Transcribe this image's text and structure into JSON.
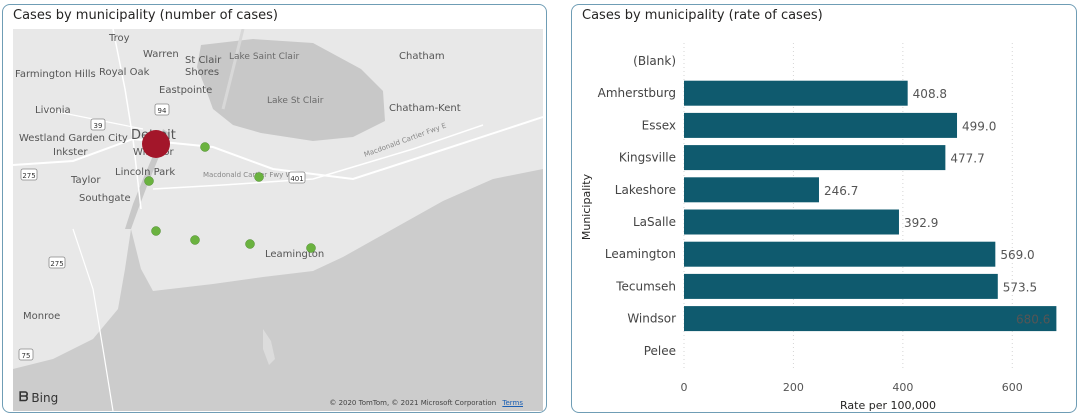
{
  "map_panel": {
    "title": "Cases by municipality (number of cases)",
    "bing_label": "Bing",
    "copyright": "© 2020 TomTom, © 2021 Microsoft Corporation",
    "terms_label": "Terms",
    "places": {
      "troy": "Troy",
      "warren": "Warren",
      "st_clair": "St Clair",
      "shores": "Shores",
      "lake_saint_clair": "Lake Saint Clair",
      "chatham": "Chatham",
      "farmington_hills": "Farmington Hills",
      "royal_oak": "Royal Oak",
      "eastpointe": "Eastpointe",
      "lake_st_clair": "Lake St Clair",
      "livonia": "Livonia",
      "chatham_kent": "Chatham-Kent",
      "westland_garden_city": "Westland Garden City",
      "detroit": "Detroit",
      "windsor": "Windsor",
      "inkster": "Inkster",
      "taylor": "Taylor",
      "lincoln_park": "Lincoln Park",
      "southgate": "Southgate",
      "leamington": "Leamington",
      "monroe": "Monroe",
      "macdonald_cartier_fwy": "Macdonald Cartier Fwy W",
      "macdonald_cartier_fwy_e": "Macdonald Cartier Fwy E"
    },
    "road_shields": [
      "94",
      "39",
      "275",
      "401",
      "275",
      "75"
    ],
    "colors": {
      "large_marker": "#a3162a",
      "small_marker": "#6ab23f"
    }
  },
  "bar_panel": {
    "title": "Cases by municipality (rate of cases)"
  },
  "chart_data": {
    "type": "bar",
    "orientation": "horizontal",
    "categories": [
      "(Blank)",
      "Amherstburg",
      "Essex",
      "Kingsville",
      "Lakeshore",
      "LaSalle",
      "Leamington",
      "Tecumseh",
      "Windsor",
      "Pelee"
    ],
    "values": [
      null,
      408.8,
      499.0,
      477.7,
      246.7,
      392.9,
      569.0,
      573.5,
      680.6,
      null
    ],
    "value_labels": [
      "",
      "408.8",
      "499.0",
      "477.7",
      "246.7",
      "392.9",
      "569.0",
      "573.5",
      "680.6",
      ""
    ],
    "xlabel": "Rate per 100,000",
    "ylabel": "Municipality",
    "xlim": [
      0,
      700
    ],
    "xticks": [
      0,
      200,
      400,
      600
    ],
    "bar_color": "#0f5a6e",
    "grid": true
  }
}
